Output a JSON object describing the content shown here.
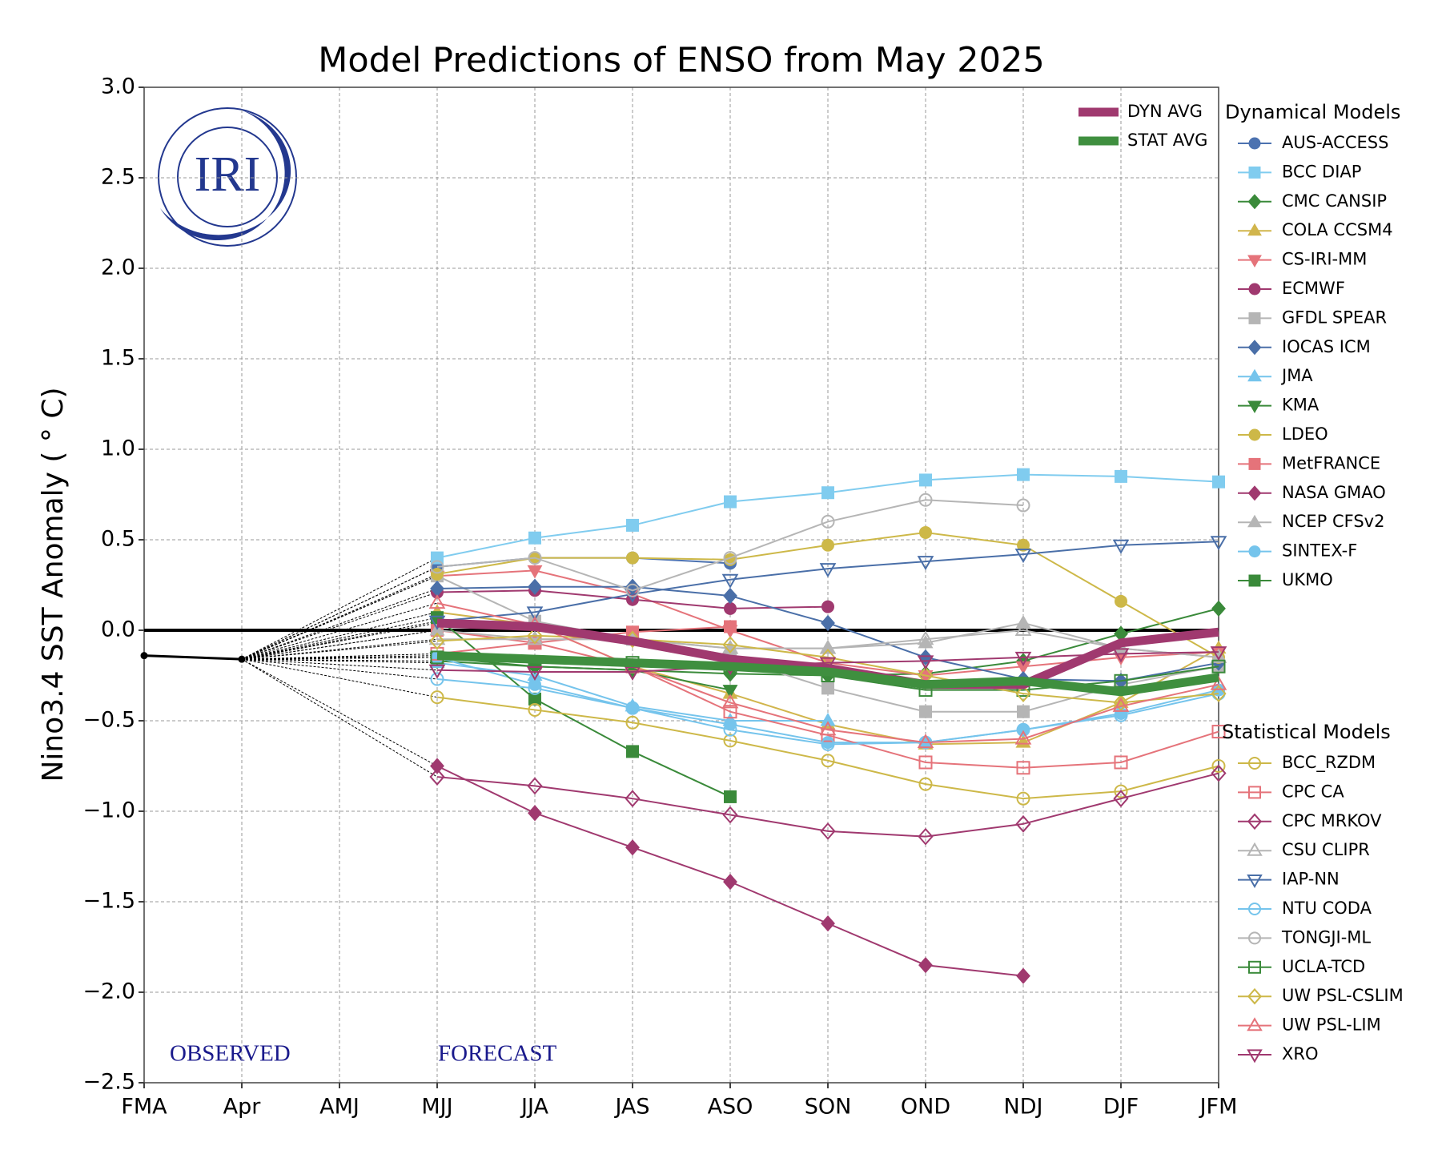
{
  "chart_data": {
    "type": "line",
    "title": "Model Predictions of ENSO from May 2025",
    "y_label": "Nino3.4 SST Anomaly ( ° C)",
    "logo_text": "IRI",
    "annotations": [
      "OBSERVED",
      "FORECAST"
    ],
    "categories": [
      "FMA",
      "Apr",
      "AMJ",
      "MJJ",
      "JJA",
      "JAS",
      "ASO",
      "SON",
      "OND",
      "NDJ",
      "DJF",
      "JFM"
    ],
    "ylim": [
      -2.5,
      3.0
    ],
    "yticks": [
      {
        "value": -2.5,
        "label": "−2.5"
      },
      {
        "value": -2.0,
        "label": "−2.0"
      },
      {
        "value": -1.5,
        "label": "−1.5"
      },
      {
        "value": -1.0,
        "label": "−1.0"
      },
      {
        "value": -0.5,
        "label": "−0.5"
      },
      {
        "value": 0.0,
        "label": "0.0"
      },
      {
        "value": 0.5,
        "label": "0.5"
      },
      {
        "value": 1.0,
        "label": "1.0"
      },
      {
        "value": 1.5,
        "label": "1.5"
      },
      {
        "value": 2.0,
        "label": "2.0"
      },
      {
        "value": 2.5,
        "label": "2.5"
      },
      {
        "value": 3.0,
        "label": "3.0"
      }
    ],
    "grid": true,
    "observed": {
      "color": "#000000",
      "values": [
        -0.14,
        -0.16,
        null,
        null,
        null,
        null,
        null,
        null,
        null,
        null,
        null,
        null
      ]
    },
    "averages": [
      {
        "name": "DYN AVG",
        "color": "#a0396f",
        "values": [
          null,
          null,
          null,
          0.04,
          0.02,
          -0.06,
          -0.16,
          -0.21,
          -0.3,
          -0.3,
          -0.07,
          -0.01
        ]
      },
      {
        "name": "STAT AVG",
        "color": "#3f8f3f",
        "values": [
          null,
          null,
          null,
          -0.14,
          -0.16,
          -0.18,
          -0.2,
          -0.23,
          -0.3,
          -0.28,
          -0.34,
          -0.26
        ]
      }
    ],
    "groups": [
      {
        "title": "Dynamical Models",
        "series": [
          {
            "name": "AUS-ACCESS",
            "color": "#4c72b0",
            "marker": "o",
            "filled": true,
            "values": [
              null,
              null,
              null,
              0.35,
              0.4,
              0.4,
              0.37,
              null,
              null,
              null,
              null,
              null
            ]
          },
          {
            "name": "BCC DIAP",
            "color": "#80ccef",
            "marker": "s",
            "filled": true,
            "values": [
              null,
              null,
              null,
              0.4,
              0.51,
              0.58,
              0.71,
              0.76,
              0.83,
              0.86,
              0.85,
              0.82
            ]
          },
          {
            "name": "CMC CANSIP",
            "color": "#3a8a3a",
            "marker": "D",
            "filled": true,
            "values": [
              null,
              null,
              null,
              -0.17,
              -0.2,
              -0.22,
              -0.24,
              -0.25,
              -0.24,
              -0.17,
              -0.02,
              0.12
            ]
          },
          {
            "name": "COLA CCSM4",
            "color": "#d1b54c",
            "marker": "^",
            "filled": true,
            "values": [
              null,
              null,
              null,
              0.1,
              0.03,
              -0.2,
              -0.35,
              -0.52,
              -0.63,
              -0.62,
              -0.4,
              -0.1
            ]
          },
          {
            "name": "CS-IRI-MM",
            "color": "#e5737a",
            "marker": "v",
            "filled": true,
            "values": [
              null,
              null,
              null,
              0.3,
              0.33,
              0.2,
              0.0,
              -0.18,
              -0.25,
              -0.2,
              -0.15,
              -0.12
            ]
          },
          {
            "name": "ECMWF",
            "color": "#a0396f",
            "marker": "o",
            "filled": true,
            "values": [
              null,
              null,
              null,
              0.21,
              0.22,
              0.17,
              0.12,
              0.13,
              null,
              null,
              null,
              null
            ]
          },
          {
            "name": "GFDL SPEAR",
            "color": "#b5b5b5",
            "marker": "s",
            "filled": true,
            "values": [
              null,
              null,
              null,
              0.3,
              0.05,
              -0.05,
              -0.15,
              -0.32,
              -0.45,
              -0.45,
              -0.3,
              -0.2
            ]
          },
          {
            "name": "IOCAS ICM",
            "color": "#4a6fa8",
            "marker": "D",
            "filled": true,
            "values": [
              null,
              null,
              null,
              0.23,
              0.24,
              0.24,
              0.19,
              0.04,
              -0.15,
              -0.27,
              -0.28,
              -0.18
            ]
          },
          {
            "name": "JMA",
            "color": "#75c4ec",
            "marker": "^",
            "filled": true,
            "values": [
              null,
              null,
              null,
              -0.18,
              -0.25,
              -0.42,
              -0.5,
              -0.5,
              null,
              null,
              null,
              null
            ]
          },
          {
            "name": "KMA",
            "color": "#3a8a3a",
            "marker": "v",
            "filled": true,
            "values": [
              null,
              null,
              null,
              -0.15,
              -0.2,
              -0.22,
              -0.33,
              null,
              null,
              null,
              null,
              null
            ]
          },
          {
            "name": "LDEO",
            "color": "#cdb848",
            "marker": "o",
            "filled": true,
            "values": [
              null,
              null,
              null,
              0.31,
              0.4,
              0.4,
              0.39,
              0.47,
              0.54,
              0.47,
              0.16,
              -0.15
            ]
          },
          {
            "name": "MetFRANCE",
            "color": "#e5737a",
            "marker": "s",
            "filled": true,
            "values": [
              null,
              null,
              null,
              0.0,
              -0.07,
              -0.01,
              0.02,
              null,
              null,
              null,
              null,
              null
            ]
          },
          {
            "name": "NASA GMAO",
            "color": "#a0396f",
            "marker": "D",
            "filled": true,
            "values": [
              null,
              null,
              null,
              -0.75,
              -1.01,
              -1.2,
              -1.39,
              -1.62,
              -1.85,
              -1.91,
              null,
              null
            ]
          },
          {
            "name": "NCEP CFSv2",
            "color": "#b5b5b5",
            "marker": "^",
            "filled": true,
            "values": [
              null,
              null,
              null,
              0.0,
              -0.05,
              -0.05,
              -0.1,
              -0.1,
              -0.07,
              0.04,
              -0.1,
              -0.15
            ]
          },
          {
            "name": "SINTEX-F",
            "color": "#75c4ec",
            "marker": "o",
            "filled": true,
            "values": [
              null,
              null,
              null,
              -0.15,
              -0.3,
              -0.43,
              -0.52,
              -0.62,
              -0.62,
              -0.55,
              -0.46,
              -0.33
            ]
          },
          {
            "name": "UKMO",
            "color": "#3a8a3a",
            "marker": "s",
            "filled": true,
            "values": [
              null,
              null,
              null,
              0.07,
              -0.38,
              -0.67,
              -0.92,
              null,
              null,
              null,
              null,
              null
            ]
          }
        ]
      },
      {
        "title": "Statistical Models",
        "series": [
          {
            "name": "BCC_RZDM",
            "color": "#cdb848",
            "marker": "o",
            "filled": false,
            "values": [
              null,
              null,
              null,
              -0.37,
              -0.44,
              -0.51,
              -0.61,
              -0.72,
              -0.85,
              -0.93,
              -0.89,
              -0.75
            ]
          },
          {
            "name": "CPC CA",
            "color": "#e5737a",
            "marker": "s",
            "filled": false,
            "values": [
              null,
              null,
              null,
              -0.13,
              -0.07,
              -0.2,
              -0.45,
              -0.58,
              -0.73,
              -0.76,
              -0.73,
              -0.56
            ]
          },
          {
            "name": "CPC MRKOV",
            "color": "#a0396f",
            "marker": "D",
            "filled": false,
            "values": [
              null,
              null,
              null,
              -0.81,
              -0.86,
              -0.93,
              -1.02,
              -1.11,
              -1.14,
              -1.07,
              -0.93,
              -0.79
            ]
          },
          {
            "name": "CSU CLIPR",
            "color": "#b5b5b5",
            "marker": "^",
            "filled": false,
            "values": [
              null,
              null,
              null,
              -0.05,
              -0.05,
              -0.05,
              -0.1,
              -0.1,
              -0.05,
              0.0,
              -0.1,
              -0.15
            ]
          },
          {
            "name": "IAP-NN",
            "color": "#4a6fa8",
            "marker": "v",
            "filled": false,
            "values": [
              null,
              null,
              null,
              0.05,
              0.1,
              0.2,
              0.28,
              0.34,
              0.38,
              0.42,
              0.47,
              0.49
            ]
          },
          {
            "name": "NTU CODA",
            "color": "#75c4ec",
            "marker": "o",
            "filled": false,
            "values": [
              null,
              null,
              null,
              -0.27,
              -0.32,
              -0.43,
              -0.55,
              -0.63,
              -0.62,
              -0.55,
              -0.47,
              -0.35
            ]
          },
          {
            "name": "TONGJI-ML",
            "color": "#b5b5b5",
            "marker": "o",
            "filled": false,
            "values": [
              null,
              null,
              null,
              0.35,
              0.4,
              0.22,
              0.4,
              0.6,
              0.72,
              0.69,
              null,
              null
            ]
          },
          {
            "name": "UCLA-TCD",
            "color": "#3a8a3a",
            "marker": "s",
            "filled": false,
            "values": [
              null,
              null,
              null,
              -0.15,
              -0.18,
              -0.18,
              -0.2,
              -0.25,
              -0.33,
              -0.33,
              -0.28,
              -0.2
            ]
          },
          {
            "name": "UW PSL-CSLIM",
            "color": "#cdb848",
            "marker": "D",
            "filled": false,
            "values": [
              null,
              null,
              null,
              -0.06,
              -0.03,
              -0.05,
              -0.08,
              -0.15,
              -0.25,
              -0.35,
              -0.4,
              -0.35
            ]
          },
          {
            "name": "UW PSL-LIM",
            "color": "#e5737a",
            "marker": "^",
            "filled": false,
            "values": [
              null,
              null,
              null,
              0.15,
              0.03,
              -0.2,
              -0.4,
              -0.55,
              -0.62,
              -0.6,
              -0.42,
              -0.3
            ]
          },
          {
            "name": "XRO",
            "color": "#a0396f",
            "marker": "v",
            "filled": false,
            "values": [
              null,
              null,
              null,
              -0.22,
              -0.23,
              -0.23,
              -0.2,
              -0.18,
              -0.17,
              -0.15,
              -0.13,
              -0.12
            ]
          }
        ]
      }
    ]
  }
}
